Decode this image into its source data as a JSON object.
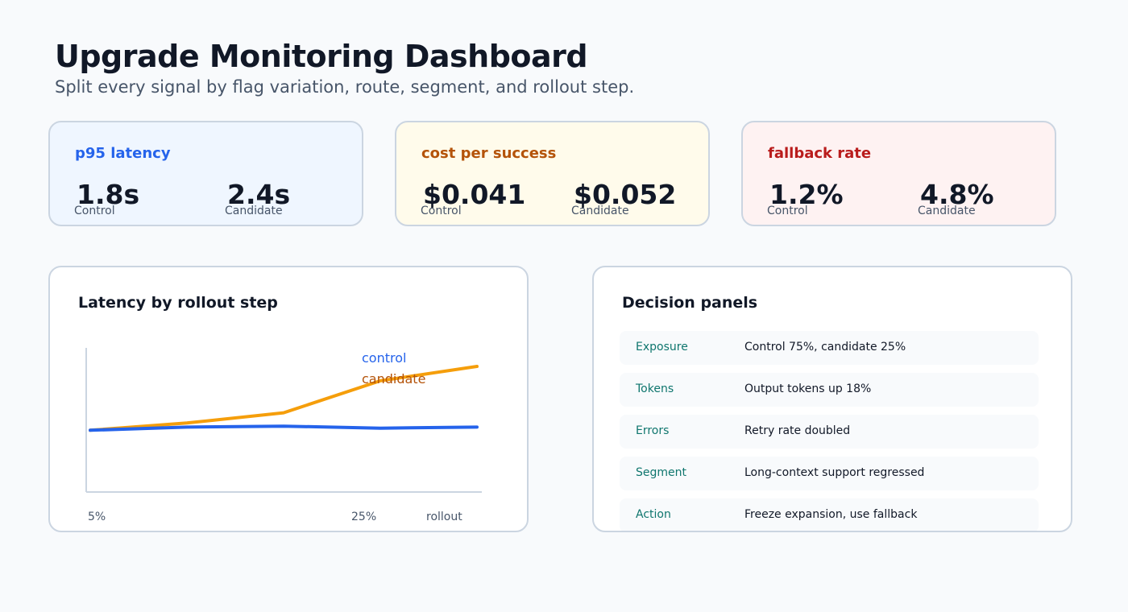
{
  "page": {
    "title": "Upgrade Monitoring Dashboard",
    "subtitle": "Split every signal by flag variation, route, segment, and rollout step."
  },
  "metrics": [
    {
      "label": "p95 latency",
      "control_value": "1.8s",
      "candidate_value": "2.4s",
      "control_label": "Control",
      "candidate_label": "Candidate",
      "accent": "#2563eb"
    },
    {
      "label": "cost per success",
      "control_value": "$0.041",
      "candidate_value": "$0.052",
      "control_label": "Control",
      "candidate_label": "Candidate",
      "accent": "#b45309"
    },
    {
      "label": "fallback rate",
      "control_value": "1.2%",
      "candidate_value": "4.8%",
      "control_label": "Control",
      "candidate_label": "Candidate",
      "accent": "#b91c1c"
    }
  ],
  "chart_panel": {
    "title": "Latency by rollout step"
  },
  "chart_data": {
    "type": "line",
    "title": "Latency by rollout step",
    "x_tick_labels": [
      "5%",
      "25%",
      "rollout"
    ],
    "series": [
      {
        "name": "control",
        "color": "#2563eb",
        "values": [
          1.8,
          1.83,
          1.84,
          1.82,
          1.83
        ]
      },
      {
        "name": "candidate",
        "color": "#f59e0b",
        "values": [
          1.8,
          1.87,
          1.97,
          2.28,
          2.42
        ]
      }
    ],
    "grid": false,
    "legend": "top-right"
  },
  "decision_panel": {
    "title": "Decision panels",
    "rows": [
      {
        "key": "Exposure",
        "value": "Control 75%, candidate 25%"
      },
      {
        "key": "Tokens",
        "value": "Output tokens up 18%"
      },
      {
        "key": "Errors",
        "value": "Retry rate doubled"
      },
      {
        "key": "Segment",
        "value": "Long-context support regressed"
      },
      {
        "key": "Action",
        "value": "Freeze expansion, use fallback"
      }
    ]
  }
}
